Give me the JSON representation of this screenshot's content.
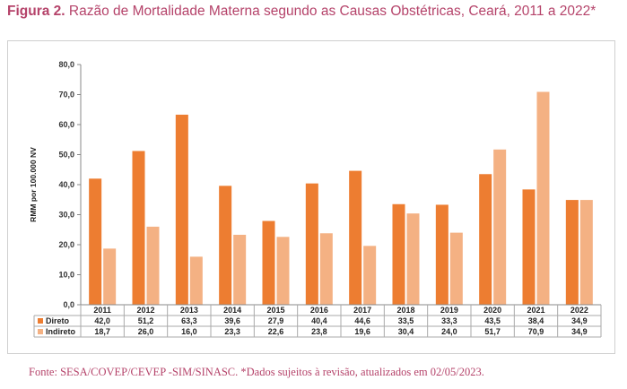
{
  "figure": {
    "label": "Figura 2.",
    "title": "Razão de Mortalidade Materna segundo as Causas Obstétricas, Ceará, 2011 a 2022*"
  },
  "source": "Fonte: SESA/COVEP/CEVEP -SIM/SINASC. *Dados sujeitos à revisão, atualizados em 02/05/2023.",
  "chart_data": {
    "type": "bar",
    "title": "Razão de Mortalidade Materna segundo as Causas Obstétricas, Ceará, 2011 a 2022*",
    "xlabel": "",
    "ylabel": "RMM por 100.000 NV",
    "ylim": [
      0,
      80
    ],
    "yticks": [
      "0,0",
      "10,0",
      "20,0",
      "30,0",
      "40,0",
      "50,0",
      "60,0",
      "70,0",
      "80,0"
    ],
    "categories": [
      "2011",
      "2012",
      "2013",
      "2014",
      "2015",
      "2016",
      "2017",
      "2018",
      "2019",
      "2020",
      "2021",
      "2022"
    ],
    "series": [
      {
        "name": "Direto",
        "color": "#ed7d31",
        "values": [
          42.0,
          51.2,
          63.3,
          39.6,
          27.9,
          40.4,
          44.6,
          33.5,
          33.3,
          43.5,
          38.4,
          34.9
        ],
        "labels": [
          "42,0",
          "51,2",
          "63,3",
          "39,6",
          "27,9",
          "40,4",
          "44,6",
          "33,5",
          "33,3",
          "43,5",
          "38,4",
          "34,9"
        ]
      },
      {
        "name": "Indireto",
        "color": "#f4b183",
        "values": [
          18.7,
          26.0,
          16.0,
          23.3,
          22.6,
          23.8,
          19.6,
          30.4,
          24.0,
          51.7,
          70.9,
          34.9
        ],
        "labels": [
          "18,7",
          "26,0",
          "16,0",
          "23,3",
          "22,6",
          "23,8",
          "19,6",
          "30,4",
          "24,0",
          "51,7",
          "70,9",
          "34,9"
        ]
      }
    ],
    "legend": "data table rows",
    "grid": false
  }
}
